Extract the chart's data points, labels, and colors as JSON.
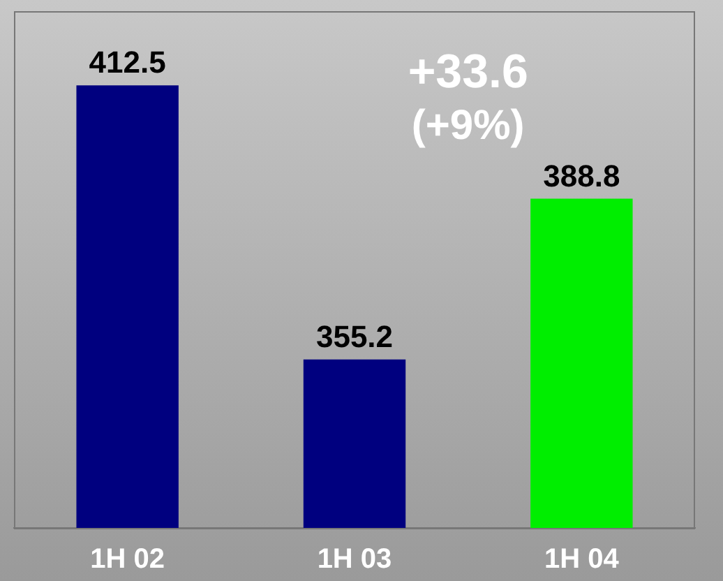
{
  "chart_data": {
    "type": "bar",
    "categories": [
      "1H 02",
      "1H 03",
      "1H 04"
    ],
    "values": [
      412.5,
      355.2,
      388.8
    ],
    "colors": [
      "#00007f",
      "#00007f",
      "#00ee00"
    ],
    "ylim": [
      320,
      428
    ],
    "data_labels": true,
    "annotations": [
      "+33.6",
      "(+9%)"
    ]
  }
}
